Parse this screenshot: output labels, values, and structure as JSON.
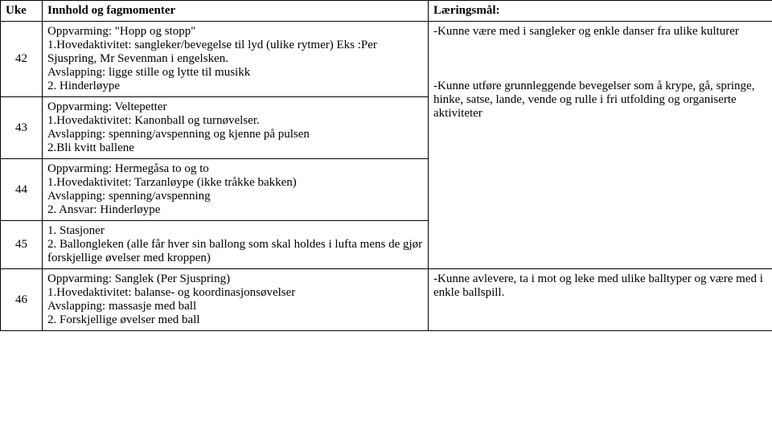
{
  "table": {
    "headers": {
      "uke": "Uke",
      "innhold": "Innhold og fagmomenter",
      "laering": "Læringsmål:"
    },
    "rows": [
      {
        "uke": "42",
        "innhold": "Oppvarming: \"Hopp og stopp\"\n1.Hovedaktivitet: sangleker/bevegelse til lyd (ulike rytmer) Eks :Per Sjuspring, Mr Sevenman i engelsken.\nAvslapping: ligge stille og lytte til musikk\n2. Hinderløype",
        "laering_span": 4,
        "laering": "-Kunne være med i sangleker og enkle danser fra ulike kulturer\n\n\n\n-Kunne utføre grunnleggende bevegelser som å krype, gå, springe, hinke, satse, lande, vende og rulle i fri utfolding og organiserte aktiviteter"
      },
      {
        "uke": "43",
        "innhold": "Oppvarming: Veltepetter\n1.Hovedaktivitet: Kanonball og turnøvelser.\nAvslapping: spenning/avspenning og kjenne på pulsen\n2.Bli kvitt ballene"
      },
      {
        "uke": "44",
        "innhold": "Oppvarming: Hermegåsa to og to\n1.Hovedaktivitet: Tarzanløype (ikke tråkke bakken)\nAvslapping: spenning/avspenning\n2. Ansvar: Hinderløype"
      },
      {
        "uke": "45",
        "innhold": "1. Stasjoner\n2. Ballongleken (alle får hver sin ballong som skal holdes i lufta mens de gjør forskjellige øvelser med kroppen)"
      },
      {
        "uke": "46",
        "innhold": "Oppvarming: Sanglek (Per Sjuspring)\n1.Hovedaktivitet: balanse- og koordinasjonsøvelser\nAvslapping: massasje med ball\n2. Forskjellige øvelser med ball",
        "laering_span": 1,
        "laering": "-Kunne avlevere, ta i mot og leke med ulike balltyper og være med i enkle ballspill."
      }
    ]
  },
  "style": {
    "font_family": "Times New Roman",
    "font_size_pt": 12,
    "border_color": "#000000",
    "background_color": "#ffffff",
    "text_color": "#000000"
  }
}
